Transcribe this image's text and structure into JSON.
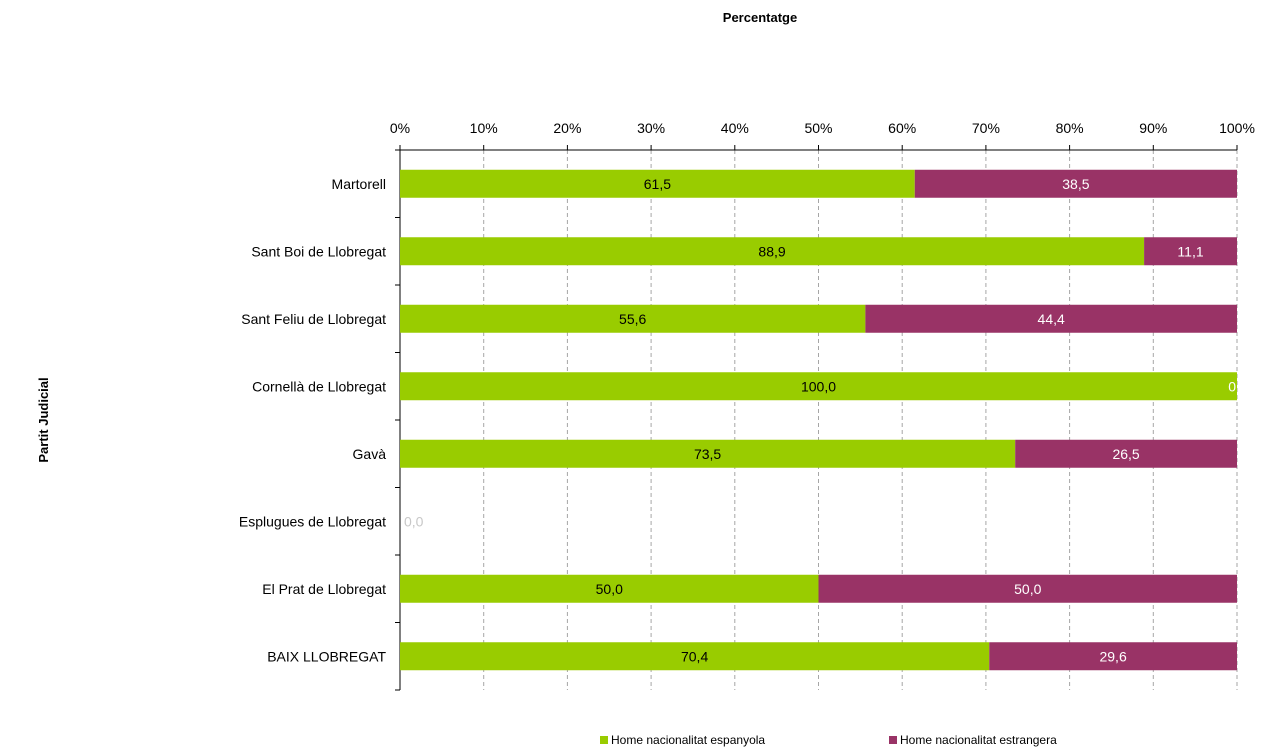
{
  "chart_data": {
    "type": "bar",
    "orientation": "horizontal",
    "stacked": true,
    "title": "Percentatge",
    "xlabel": "",
    "ylabel": "Partit Judicial",
    "xlim": [
      0,
      100
    ],
    "x_ticks": [
      "0%",
      "10%",
      "20%",
      "30%",
      "40%",
      "50%",
      "60%",
      "70%",
      "80%",
      "90%",
      "100%"
    ],
    "grid": "vertical dashed",
    "legend_position": "bottom",
    "categories": [
      "Martorell",
      "Sant Boi de Llobregat",
      "Sant Feliu de Llobregat",
      "Cornellà de Llobregat",
      "Gavà",
      "Esplugues de Llobregat",
      "El Prat de Llobregat",
      "BAIX LLOBREGAT"
    ],
    "series": [
      {
        "name": "Home nacionalitat espanyola",
        "color": "#99cc00",
        "values": [
          61.5,
          88.9,
          55.6,
          100.0,
          73.5,
          0.0,
          50.0,
          70.4
        ],
        "labels": [
          "61,5",
          "88,9",
          "55,6",
          "100,0",
          "73,5",
          "0,0",
          "50,0",
          "70,4"
        ]
      },
      {
        "name": "Home nacionalitat estrangera",
        "color": "#993366",
        "values": [
          38.5,
          11.1,
          44.4,
          0.0,
          26.5,
          0.0,
          50.0,
          29.6
        ],
        "labels": [
          "38,5",
          "11,1",
          "44,4",
          "0",
          "26,5",
          "",
          "50,0",
          "29,6"
        ]
      }
    ]
  }
}
